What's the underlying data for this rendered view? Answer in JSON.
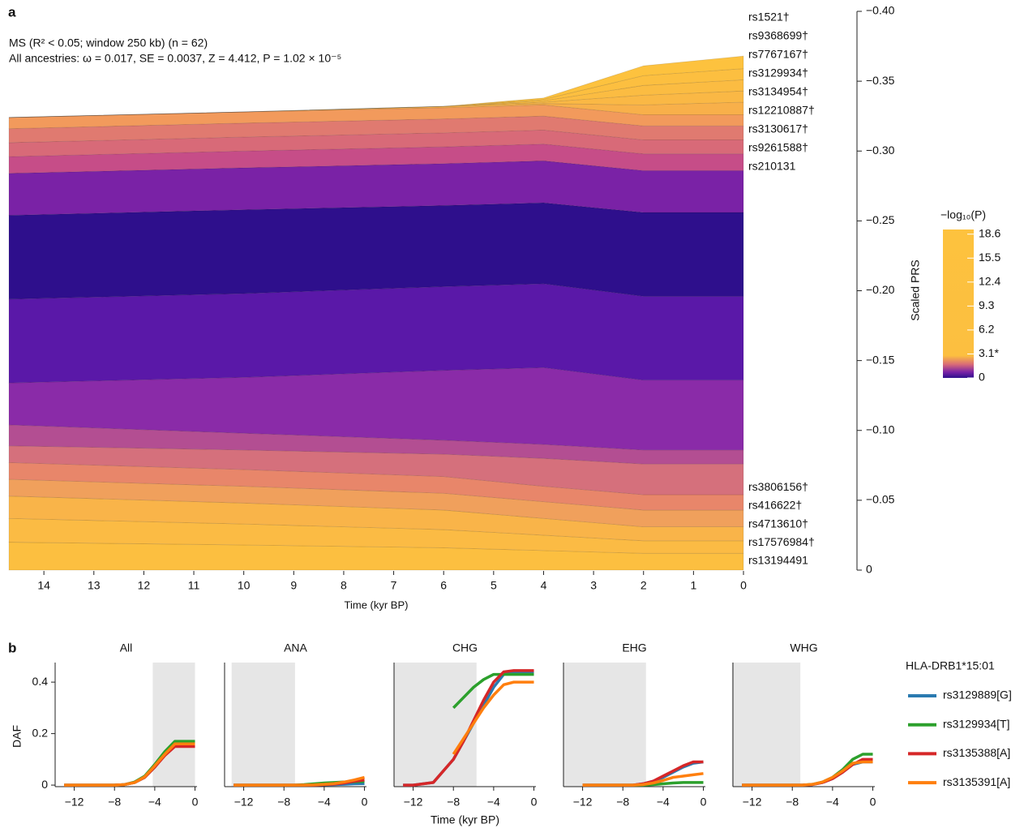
{
  "chart_data": [
    {
      "type": "area",
      "stacked": true,
      "panel_label": "a",
      "annotations": [
        "MS (R² < 0.05; window 250 kb) (n = 62)",
        "All ancestries: ω = 0.017, SE = 0.0037, Z = 4.412, P = 1.02 × 10⁻⁵"
      ],
      "xlabel": "Time (kyr BP)",
      "ylabel": "Scaled PRS",
      "x": [
        14.7,
        10,
        6,
        4,
        2,
        0
      ],
      "xlim": [
        14.7,
        0
      ],
      "xticks": [
        14,
        13,
        12,
        11,
        10,
        9,
        8,
        7,
        6,
        5,
        4,
        3,
        2,
        1,
        0
      ],
      "ylim": [
        0,
        -0.4
      ],
      "yticks": [
        {
          "value": 0,
          "label": "0"
        },
        {
          "value": -0.05,
          "label": "−0.05"
        },
        {
          "value": -0.1,
          "label": "−0.10"
        },
        {
          "value": -0.15,
          "label": "−0.15"
        },
        {
          "value": -0.2,
          "label": "−0.20"
        },
        {
          "value": -0.25,
          "label": "−0.25"
        },
        {
          "value": -0.3,
          "label": "−0.30"
        },
        {
          "value": -0.35,
          "label": "−0.35"
        },
        {
          "value": -0.4,
          "label": "−0.40"
        }
      ],
      "series": [
        {
          "name": "rs13194491",
          "color": "#fcbf40",
          "values": [
            -0.02,
            -0.018,
            -0.016,
            -0.014,
            -0.012,
            -0.012
          ]
        },
        {
          "name": "rs17576984†",
          "color": "#fbbb44",
          "values": [
            -0.017,
            -0.015,
            -0.013,
            -0.011,
            -0.009,
            -0.009
          ]
        },
        {
          "name": "rs4713610†",
          "color": "#f9b449",
          "values": [
            -0.016,
            -0.015,
            -0.014,
            -0.012,
            -0.01,
            -0.01
          ]
        },
        {
          "name": "rs416622†",
          "color": "#f0a05c",
          "values": [
            -0.012,
            -0.012,
            -0.012,
            -0.012,
            -0.012,
            -0.012
          ]
        },
        {
          "name": "rs3806156†",
          "color": "#e8866a",
          "values": [
            -0.012,
            -0.012,
            -0.012,
            -0.011,
            -0.011,
            -0.011
          ]
        },
        {
          "color": "#d5707c",
          "values": [
            -0.012,
            -0.014,
            -0.016,
            -0.02,
            -0.022,
            -0.022
          ]
        },
        {
          "color": "#b34e92",
          "values": [
            -0.015,
            -0.012,
            -0.01,
            -0.01,
            -0.01,
            -0.01
          ]
        },
        {
          "color": "#8a2ba8",
          "values": [
            -0.03,
            -0.04,
            -0.05,
            -0.055,
            -0.05,
            -0.05
          ]
        },
        {
          "color": "#5a18a8",
          "values": [
            -0.06,
            -0.06,
            -0.06,
            -0.06,
            -0.06,
            -0.06
          ]
        },
        {
          "color": "#2e0f8c",
          "values": [
            -0.06,
            -0.06,
            -0.058,
            -0.058,
            -0.06,
            -0.06
          ]
        },
        {
          "color": "#7a22a6",
          "values": [
            -0.03,
            -0.03,
            -0.03,
            -0.03,
            -0.03,
            -0.03
          ]
        },
        {
          "name": "rs210131",
          "color": "#c64d88",
          "values": [
            -0.012,
            -0.012,
            -0.012,
            -0.012,
            -0.012,
            -0.012
          ]
        },
        {
          "name": "rs9261588†",
          "color": "#d86a78",
          "values": [
            -0.01,
            -0.01,
            -0.01,
            -0.01,
            -0.01,
            -0.01
          ]
        },
        {
          "name": "rs3130617†",
          "color": "#e07a70",
          "values": [
            -0.01,
            -0.01,
            -0.01,
            -0.01,
            -0.01,
            -0.01
          ]
        },
        {
          "name": "rs12210887†",
          "color": "#f29a5c",
          "values": [
            -0.008,
            -0.008,
            -0.008,
            -0.008,
            -0.008,
            -0.008
          ]
        },
        {
          "name": "rs3134954†",
          "color": "#f8b04a",
          "values": [
            0,
            0,
            -0.001,
            -0.001,
            -0.007,
            -0.009
          ]
        },
        {
          "name": "rs3129934†",
          "color": "#fab845",
          "values": [
            0,
            0,
            0,
            -0.001,
            -0.007,
            -0.008
          ]
        },
        {
          "name": "rs7767167†",
          "color": "#fbbc42",
          "values": [
            0,
            0,
            0,
            -0.001,
            -0.007,
            -0.008
          ]
        },
        {
          "name": "rs9368699†",
          "color": "#fcbf40",
          "values": [
            0,
            0,
            0,
            -0.001,
            -0.007,
            -0.008
          ]
        },
        {
          "name": "rs1521†",
          "color": "#fdc23e",
          "values": [
            0,
            0,
            0,
            -0.001,
            -0.007,
            -0.009
          ]
        }
      ],
      "colorbar": {
        "title": "−log₁₀(P)",
        "clim": [
          0,
          19.2
        ],
        "ticks": [
          18.6,
          15.5,
          12.4,
          9.3,
          6.2,
          {
            "value": 3.1,
            "label": "3.1*"
          },
          0
        ]
      }
    },
    {
      "type": "line",
      "panel_label": "b",
      "title": "All",
      "ylabel": "DAF",
      "legend_title": "HLA-DRB1*15:01",
      "x": [
        -13,
        -12,
        -10,
        -8,
        -7,
        -6,
        -5,
        -4,
        -3,
        -2,
        -1,
        0
      ],
      "shade": [
        -4.2,
        0
      ],
      "xlim": [
        -13.9,
        0.2
      ],
      "xticks": [
        {
          "value": -12,
          "label": "−12"
        },
        {
          "value": -8,
          "label": "−8"
        },
        {
          "value": -4,
          "label": "−4"
        },
        0
      ],
      "ylim": [
        -0.006,
        0.476
      ],
      "yticks": [
        0,
        0.2,
        0.4
      ],
      "series": [
        {
          "name": "rs3129889[G]",
          "color": "#2a7ab0",
          "values": [
            0,
            0,
            0,
            0,
            0.002,
            0.01,
            0.03,
            0.07,
            0.12,
            0.16,
            0.165,
            0.165
          ]
        },
        {
          "name": "rs3129934[T]",
          "color": "#2ca02c",
          "values": [
            0,
            0,
            0,
            0,
            0.002,
            0.012,
            0.035,
            0.08,
            0.13,
            0.17,
            0.17,
            0.17
          ]
        },
        {
          "name": "rs3135388[A]",
          "color": "#d62728",
          "values": [
            0,
            0,
            0,
            0,
            0.002,
            0.01,
            0.03,
            0.07,
            0.115,
            0.15,
            0.15,
            0.15
          ]
        },
        {
          "name": "rs3135391[A]",
          "color": "#ff7f0e",
          "values": [
            0,
            0,
            0,
            0,
            0.002,
            0.01,
            0.032,
            0.075,
            0.12,
            0.16,
            0.16,
            0.16
          ]
        }
      ]
    },
    {
      "type": "line",
      "title": "ANA",
      "x": [
        -13,
        -12,
        -10,
        -8,
        -7,
        -6,
        -5,
        -4,
        -3,
        -2,
        -1,
        0
      ],
      "shade": [
        -13.2,
        -6.9
      ],
      "xlim": [
        -13.9,
        0.2
      ],
      "xticks": [
        {
          "value": -12,
          "label": "−12"
        },
        {
          "value": -8,
          "label": "−8"
        },
        {
          "value": -4,
          "label": "−4"
        },
        0
      ],
      "ylim": [
        -0.006,
        0.476
      ],
      "series": [
        {
          "color": "#2a7ab0",
          "values": [
            0,
            0,
            0,
            0,
            0,
            0,
            0,
            0.001,
            0.002,
            0.003,
            0.005,
            0.006
          ]
        },
        {
          "color": "#2ca02c",
          "values": [
            0,
            0,
            0,
            0,
            0,
            0.002,
            0.005,
            0.008,
            0.01,
            0.012,
            0.013,
            0.014
          ]
        },
        {
          "color": "#d62728",
          "values": [
            0,
            0,
            0,
            0,
            0,
            0,
            0,
            0.002,
            0.004,
            0.008,
            0.015,
            0.02
          ]
        },
        {
          "color": "#ff7f0e",
          "values": [
            0,
            0,
            0,
            0,
            0,
            0,
            0.001,
            0.003,
            0.006,
            0.012,
            0.02,
            0.03
          ]
        }
      ]
    },
    {
      "type": "line",
      "title": "CHG",
      "xlabel": "Time (kyr BP)",
      "x": [
        -13,
        -12,
        -10,
        -8,
        -7,
        -6,
        -5,
        -4,
        -3,
        -2,
        -1,
        0
      ],
      "shade": [
        -13.9,
        -5.7
      ],
      "xlim": [
        -13.9,
        0.2
      ],
      "xticks": [
        {
          "value": -12,
          "label": "−12"
        },
        {
          "value": -8,
          "label": "−8"
        },
        {
          "value": -4,
          "label": "−4"
        },
        0
      ],
      "ylim": [
        -0.006,
        0.476
      ],
      "series": [
        {
          "color": "#2a7ab0",
          "values": [
            0,
            0,
            0.01,
            0.1,
            0.17,
            0.24,
            0.31,
            0.38,
            0.43,
            0.44,
            0.44,
            0.44
          ]
        },
        {
          "color": "#2ca02c",
          "values": [
            null,
            null,
            null,
            0.3,
            0.34,
            0.38,
            0.41,
            0.43,
            0.43,
            0.43,
            0.43,
            0.43
          ]
        },
        {
          "color": "#d62728",
          "values": [
            0,
            0,
            0.01,
            0.1,
            0.17,
            0.25,
            0.33,
            0.4,
            0.44,
            0.445,
            0.445,
            0.445
          ]
        },
        {
          "color": "#ff7f0e",
          "values": [
            null,
            null,
            null,
            0.12,
            0.18,
            0.24,
            0.3,
            0.35,
            0.39,
            0.4,
            0.4,
            0.4
          ]
        }
      ]
    },
    {
      "type": "line",
      "title": "EHG",
      "x": [
        -13,
        -12,
        -10,
        -8,
        -7,
        -6,
        -5,
        -4,
        -3,
        -2,
        -1,
        0
      ],
      "shade": [
        -13.9,
        -5.7
      ],
      "xlim": [
        -13.9,
        0.2
      ],
      "xticks": [
        {
          "value": -12,
          "label": "−12"
        },
        {
          "value": -8,
          "label": "−8"
        },
        {
          "value": -4,
          "label": "−4"
        },
        0
      ],
      "ylim": [
        -0.006,
        0.476
      ],
      "series": [
        {
          "color": "#2a7ab0",
          "values": [
            null,
            0,
            0,
            0,
            0,
            0.005,
            0.015,
            0.03,
            0.05,
            0.07,
            0.085,
            0.09
          ]
        },
        {
          "color": "#2ca02c",
          "values": [
            null,
            0,
            0,
            0,
            0,
            0,
            0.002,
            0.005,
            0.008,
            0.01,
            0.01,
            0.01
          ]
        },
        {
          "color": "#d62728",
          "values": [
            null,
            0,
            0,
            0,
            0,
            0.005,
            0.015,
            0.035,
            0.055,
            0.075,
            0.09,
            0.09
          ]
        },
        {
          "color": "#ff7f0e",
          "values": [
            null,
            0,
            0,
            0,
            0,
            0.002,
            0.008,
            0.018,
            0.03,
            0.035,
            0.04,
            0.045
          ]
        }
      ]
    },
    {
      "type": "line",
      "title": "WHG",
      "x": [
        -13,
        -12,
        -10,
        -8,
        -7,
        -6,
        -5,
        -4,
        -3,
        -2,
        -1,
        0
      ],
      "shade": [
        -14.0,
        -7.2
      ],
      "xlim": [
        -13.9,
        0.2
      ],
      "xticks": [
        {
          "value": -12,
          "label": "−12"
        },
        {
          "value": -8,
          "label": "−8"
        },
        {
          "value": -4,
          "label": "−4"
        },
        0
      ],
      "ylim": [
        -0.006,
        0.476
      ],
      "series": [
        {
          "color": "#2a7ab0",
          "values": [
            0,
            0,
            0,
            0,
            0,
            0.002,
            0.01,
            0.025,
            0.05,
            0.08,
            0.09,
            0.09
          ]
        },
        {
          "color": "#2ca02c",
          "values": [
            0,
            0,
            0,
            0,
            0,
            0.003,
            0.012,
            0.03,
            0.06,
            0.1,
            0.12,
            0.12
          ]
        },
        {
          "color": "#d62728",
          "values": [
            0,
            0,
            0,
            0,
            0,
            0.002,
            0.01,
            0.025,
            0.05,
            0.08,
            0.1,
            0.1
          ]
        },
        {
          "color": "#ff7f0e",
          "values": [
            0,
            0,
            0,
            0,
            0,
            0.003,
            0.012,
            0.03,
            0.055,
            0.085,
            0.09,
            0.09
          ]
        }
      ]
    }
  ]
}
